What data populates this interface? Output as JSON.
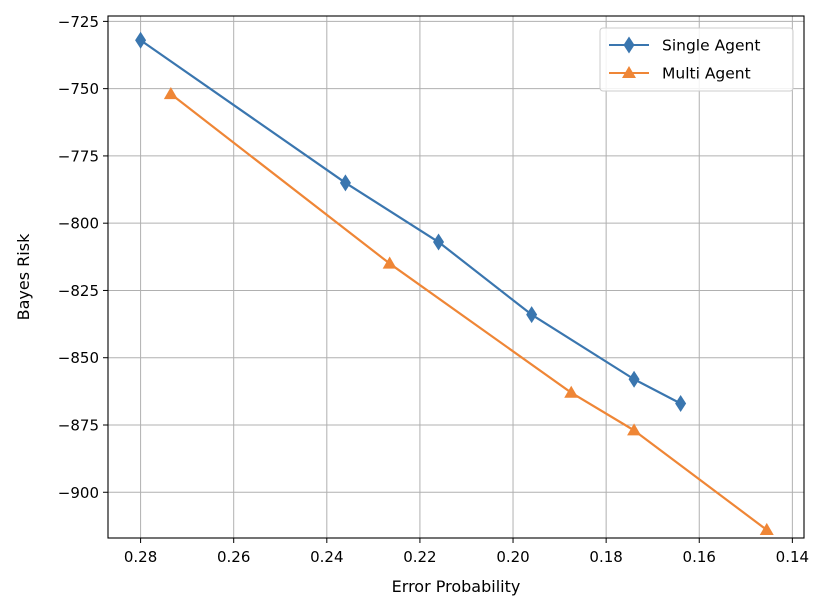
{
  "chart_data": {
    "type": "line",
    "title": "",
    "xlabel": "Error Probability",
    "ylabel": "Bayes Risk",
    "x_inverted": true,
    "xlim": [
      0.287,
      0.1375
    ],
    "ylim": [
      -917,
      -723
    ],
    "xticks": [
      0.28,
      0.26,
      0.24,
      0.22,
      0.2,
      0.18,
      0.16,
      0.14
    ],
    "xtick_labels": [
      "0.28",
      "0.26",
      "0.24",
      "0.22",
      "0.20",
      "0.18",
      "0.16",
      "0.14"
    ],
    "yticks": [
      -725,
      -750,
      -775,
      -800,
      -825,
      -850,
      -875,
      -900
    ],
    "ytick_labels": [
      "−725",
      "−750",
      "−775",
      "−800",
      "−825",
      "−850",
      "−875",
      "−900"
    ],
    "grid": true,
    "legend_position": "top-right",
    "series": [
      {
        "name": "Single Agent",
        "color": "#3a76af",
        "marker": "diamond",
        "x": [
          0.28,
          0.236,
          0.216,
          0.196,
          0.174,
          0.164
        ],
        "y": [
          -732,
          -785,
          -807,
          -834,
          -858,
          -867
        ]
      },
      {
        "name": "Multi Agent",
        "color": "#ef8636",
        "marker": "triangle-up",
        "x": [
          0.2735,
          0.2265,
          0.1875,
          0.174,
          0.1455
        ],
        "y": [
          -752,
          -815,
          -863,
          -877,
          -914
        ]
      }
    ]
  }
}
